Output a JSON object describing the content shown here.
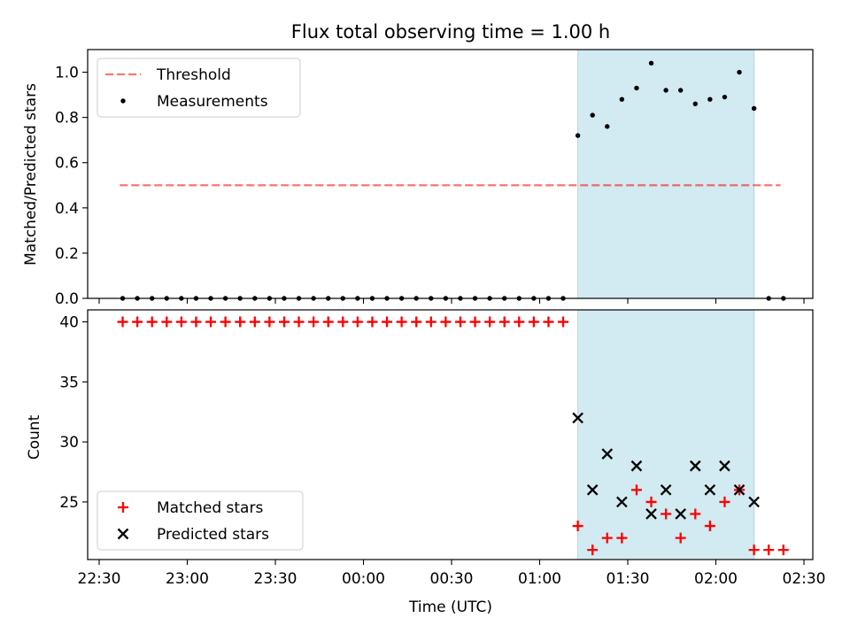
{
  "chart_data": [
    {
      "type": "scatter",
      "title": "Flux total observing time = 1.00 h",
      "xlabel": "",
      "ylabel": "Matched/Predicted stars",
      "ylim": [
        0,
        1.1
      ],
      "yticks": [
        0.0,
        0.2,
        0.4,
        0.6,
        0.8,
        1.0
      ],
      "ytick_labels": [
        "0.0",
        "0.2",
        "0.4",
        "0.6",
        "0.8",
        "1.0"
      ],
      "shaded_span": {
        "start": "01:13",
        "end": "02:13",
        "color": "#add8e6"
      },
      "legend": {
        "placement": "upper-left",
        "entries": [
          "Threshold",
          "Measurements"
        ]
      },
      "threshold": {
        "name": "Threshold",
        "y": 0.5,
        "x_start": "22:37",
        "x_end": "02:22",
        "color": "#ff0000",
        "style": "dashed"
      },
      "series": [
        {
          "name": "Measurements",
          "marker": "dot",
          "color": "#000000",
          "x": [
            "22:38",
            "22:43",
            "22:48",
            "22:53",
            "22:58",
            "23:03",
            "23:08",
            "23:13",
            "23:18",
            "23:23",
            "23:28",
            "23:33",
            "23:38",
            "23:43",
            "23:48",
            "23:53",
            "23:58",
            "00:03",
            "00:08",
            "00:13",
            "00:18",
            "00:23",
            "00:28",
            "00:33",
            "00:38",
            "00:43",
            "00:48",
            "00:53",
            "00:58",
            "01:03",
            "01:08",
            "01:13",
            "01:18",
            "01:23",
            "01:28",
            "01:33",
            "01:38",
            "01:43",
            "01:48",
            "01:53",
            "01:58",
            "02:03",
            "02:08",
            "02:13",
            "02:18",
            "02:23"
          ],
          "y": [
            0,
            0,
            0,
            0,
            0,
            0,
            0,
            0,
            0,
            0,
            0,
            0,
            0,
            0,
            0,
            0,
            0,
            0,
            0,
            0,
            0,
            0,
            0,
            0,
            0,
            0,
            0,
            0,
            0,
            0,
            0,
            0.72,
            0.81,
            0.76,
            0.88,
            0.93,
            1.04,
            0.92,
            0.92,
            0.86,
            0.88,
            0.89,
            1.0,
            0.84,
            0,
            0
          ]
        }
      ]
    },
    {
      "type": "scatter",
      "title": "",
      "xlabel": "Time (UTC)",
      "ylabel": "Count",
      "ylim": [
        20.2,
        41.0
      ],
      "yticks": [
        25,
        30,
        35,
        40
      ],
      "ytick_labels": [
        "25",
        "30",
        "35",
        "40"
      ],
      "xticks": [
        "22:30",
        "23:00",
        "23:30",
        "00:00",
        "00:30",
        "01:00",
        "01:30",
        "02:00",
        "02:30"
      ],
      "shaded_span": {
        "start": "01:13",
        "end": "02:13",
        "color": "#add8e6"
      },
      "legend": {
        "placement": "lower-left",
        "entries": [
          "Matched stars",
          "Predicted stars"
        ]
      },
      "series": [
        {
          "name": "Matched stars",
          "marker": "plus",
          "color": "#ff0000",
          "x": [
            "22:38",
            "22:43",
            "22:48",
            "22:53",
            "22:58",
            "23:03",
            "23:08",
            "23:13",
            "23:18",
            "23:23",
            "23:28",
            "23:33",
            "23:38",
            "23:43",
            "23:48",
            "23:53",
            "23:58",
            "00:03",
            "00:08",
            "00:13",
            "00:18",
            "00:23",
            "00:28",
            "00:33",
            "00:38",
            "00:43",
            "00:48",
            "00:53",
            "00:58",
            "01:03",
            "01:08",
            "01:13",
            "01:18",
            "01:23",
            "01:28",
            "01:33",
            "01:38",
            "01:43",
            "01:48",
            "01:53",
            "01:58",
            "02:03",
            "02:08",
            "02:13",
            "02:18",
            "02:23"
          ],
          "y": [
            40,
            40,
            40,
            40,
            40,
            40,
            40,
            40,
            40,
            40,
            40,
            40,
            40,
            40,
            40,
            40,
            40,
            40,
            40,
            40,
            40,
            40,
            40,
            40,
            40,
            40,
            40,
            40,
            40,
            40,
            40,
            23,
            21,
            22,
            22,
            26,
            25,
            24,
            22,
            24,
            23,
            25,
            26,
            21,
            21,
            21
          ]
        },
        {
          "name": "Predicted stars",
          "marker": "x",
          "color": "#000000",
          "x": [
            "01:13",
            "01:18",
            "01:23",
            "01:28",
            "01:33",
            "01:38",
            "01:43",
            "01:48",
            "01:53",
            "01:58",
            "02:03",
            "02:08",
            "02:13"
          ],
          "y": [
            32,
            26,
            29,
            25,
            28,
            24,
            26,
            24,
            28,
            26,
            28,
            26,
            25
          ]
        }
      ]
    }
  ]
}
